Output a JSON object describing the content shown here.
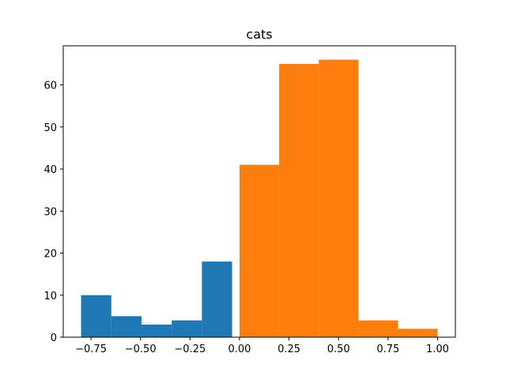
{
  "chart_data": {
    "type": "bar",
    "title": "cats",
    "xlabel": "",
    "ylabel": "",
    "xlim": [
      -0.89,
      1.09
    ],
    "ylim": [
      0,
      69.3
    ],
    "x_ticks": [
      -0.75,
      -0.5,
      -0.25,
      0.0,
      0.25,
      0.5,
      0.75,
      1.0
    ],
    "x_tick_labels": [
      "−0.75",
      "−0.50",
      "−0.25",
      "0.00",
      "0.25",
      "0.50",
      "0.75",
      "1.00"
    ],
    "y_ticks": [
      0,
      10,
      20,
      30,
      40,
      50,
      60
    ],
    "y_tick_labels": [
      "0",
      "10",
      "20",
      "30",
      "40",
      "50",
      "60"
    ],
    "grid": false,
    "legend": "none",
    "series": [
      {
        "color": "#1f77b4",
        "bins": [
          {
            "x0": -0.8,
            "x1": -0.6475,
            "count": 10
          },
          {
            "x0": -0.6475,
            "x1": -0.495,
            "count": 5
          },
          {
            "x0": -0.495,
            "x1": -0.3425,
            "count": 3
          },
          {
            "x0": -0.3425,
            "x1": -0.19,
            "count": 4
          },
          {
            "x0": -0.19,
            "x1": -0.0375,
            "count": 18
          }
        ]
      },
      {
        "color": "#ff7f0e",
        "bins": [
          {
            "x0": 0.0,
            "x1": 0.2,
            "count": 41
          },
          {
            "x0": 0.2,
            "x1": 0.4,
            "count": 65
          },
          {
            "x0": 0.4,
            "x1": 0.6,
            "count": 66
          },
          {
            "x0": 0.6,
            "x1": 0.8,
            "count": 4
          },
          {
            "x0": 0.8,
            "x1": 1.0,
            "count": 2
          }
        ]
      }
    ]
  }
}
